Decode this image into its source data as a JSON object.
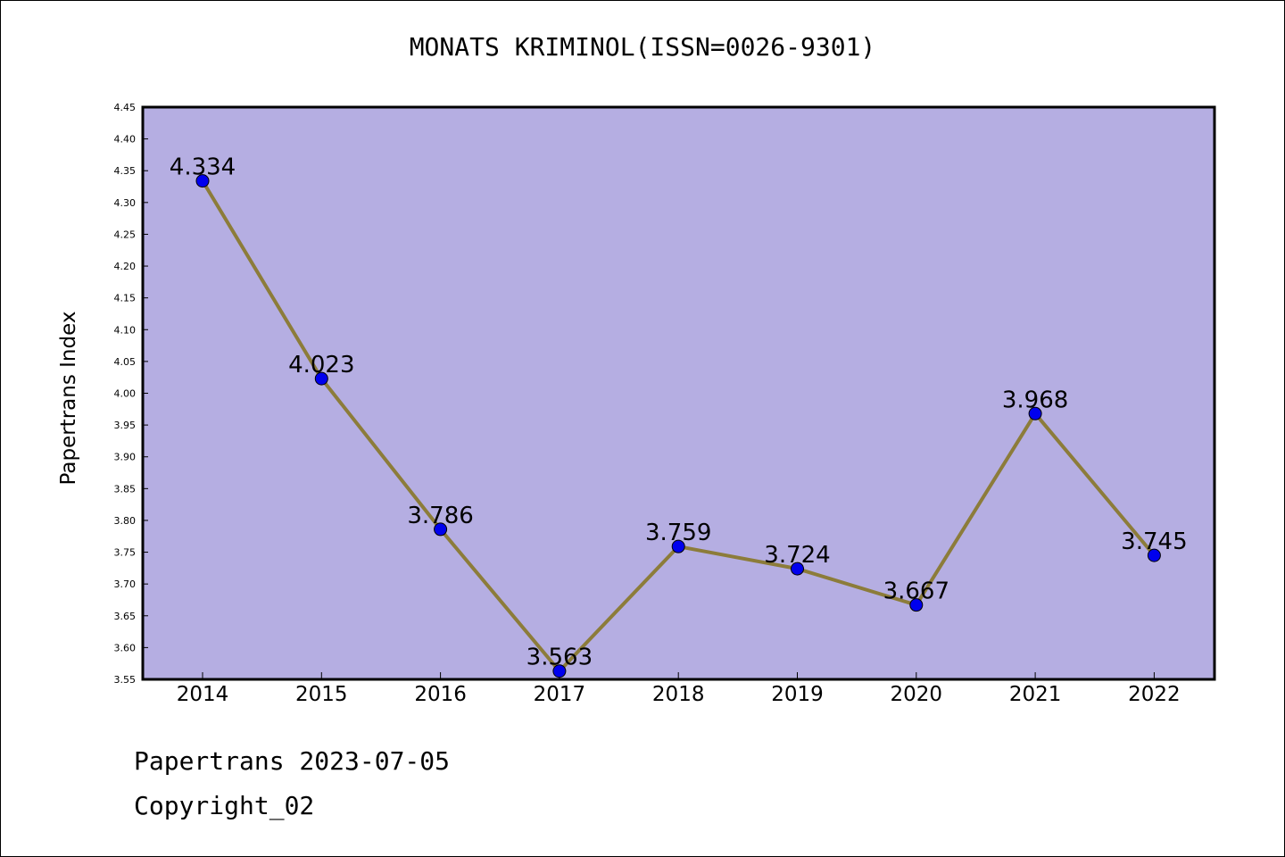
{
  "chart_data": {
    "type": "line",
    "title": "MONATS KRIMINOL(ISSN=0026-9301)",
    "xlabel": "",
    "ylabel": "Papertrans Index",
    "categories": [
      "2014",
      "2015",
      "2016",
      "2017",
      "2018",
      "2019",
      "2020",
      "2021",
      "2022"
    ],
    "series": [
      {
        "values": [
          4.334,
          4.023,
          3.786,
          3.563,
          3.759,
          3.724,
          3.667,
          3.968,
          3.745
        ],
        "data_labels": [
          "4.334",
          "4.023",
          "3.786",
          "3.563",
          "3.759",
          "3.724",
          "3.667",
          "3.968",
          "3.745"
        ]
      }
    ],
    "ylim": [
      3.55,
      4.45
    ],
    "yticks": [
      "3.55",
      "3.60",
      "3.65",
      "3.70",
      "3.75",
      "3.80",
      "3.85",
      "3.90",
      "3.95",
      "4.00",
      "4.05",
      "4.10",
      "4.15",
      "4.20",
      "4.25",
      "4.30",
      "4.35",
      "4.40",
      "4.45"
    ],
    "grid": false,
    "colors": {
      "plot_background": "#b5aee2",
      "line": "#8c7c3a",
      "marker": "#0000ee"
    }
  },
  "footer": {
    "line1": "Papertrans 2023-07-05",
    "line2": "Copyright_02"
  }
}
